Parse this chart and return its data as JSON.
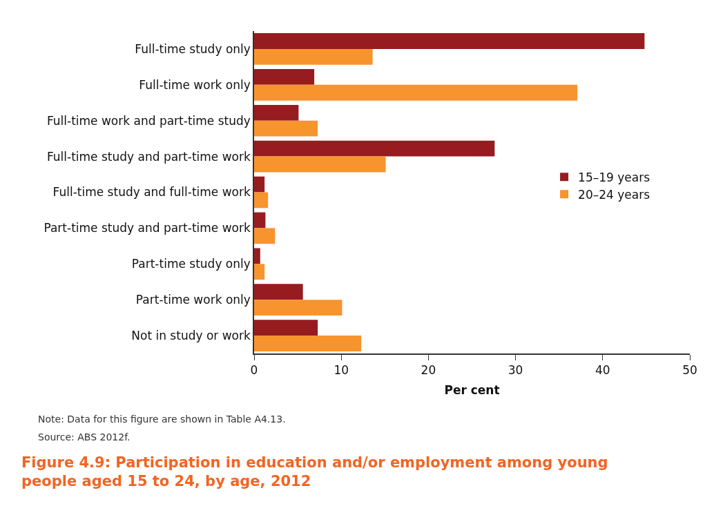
{
  "chart_data": {
    "type": "bar",
    "orientation": "horizontal",
    "title": "Figure 4.9: Participation in education and/or employment among young people aged 15 to 24, by age, 2012",
    "xlabel": "Per cent",
    "categories": [
      "Full-time study only",
      "Full-time work only",
      "Full-time work and part-time study",
      "Full-time study and part-time work",
      "Full-time study and full-time work",
      "Part-time study and part-time work",
      "Part-time study only",
      "Part-time work only",
      "Not in study or work"
    ],
    "series": [
      {
        "name": "15–19 years",
        "color": "#961c1f",
        "values": [
          44.8,
          6.9,
          5.1,
          27.6,
          1.2,
          1.3,
          0.7,
          5.6,
          7.3
        ]
      },
      {
        "name": "20–24 years",
        "color": "#f7942d",
        "values": [
          13.6,
          37.1,
          7.3,
          15.1,
          1.6,
          2.4,
          1.2,
          10.1,
          12.3
        ]
      }
    ],
    "xlim": [
      0,
      50
    ],
    "xticks": [
      0,
      10,
      20,
      30,
      40,
      50
    ],
    "grid": false,
    "legend": "right",
    "annotations": [
      "Note: Data for this figure are shown in Table A4.13.",
      "Source: ABS 2012f."
    ]
  }
}
